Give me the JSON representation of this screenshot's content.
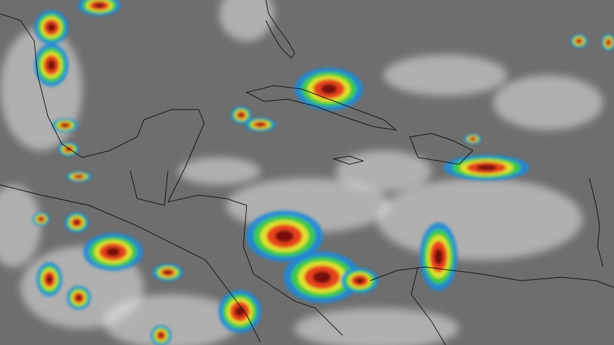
{
  "map": {
    "palette": {
      "background": "#6e6e6e",
      "cloud_white": "#e8e8e8",
      "cold_blue": "#1e8ad6",
      "green": "#3fd23a",
      "yellow": "#f2e52a",
      "red": "#e8301e",
      "dark_red": "#6a0c0c",
      "coastline": "#111111"
    }
  }
}
